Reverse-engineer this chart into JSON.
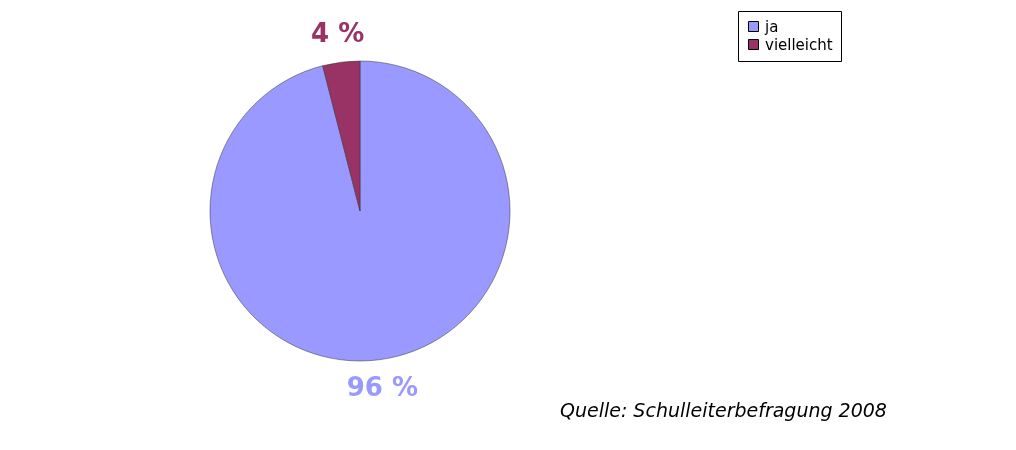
{
  "chart_data": {
    "type": "pie",
    "categories": [
      "ja",
      "vielleicht"
    ],
    "values": [
      96,
      4
    ],
    "colors": [
      "#9999ff",
      "#993366"
    ],
    "value_labels": [
      "96 %",
      "4 %"
    ],
    "legend": "right",
    "annotations": [
      "Quelle: Schulleiterbefragung 2008"
    ]
  }
}
